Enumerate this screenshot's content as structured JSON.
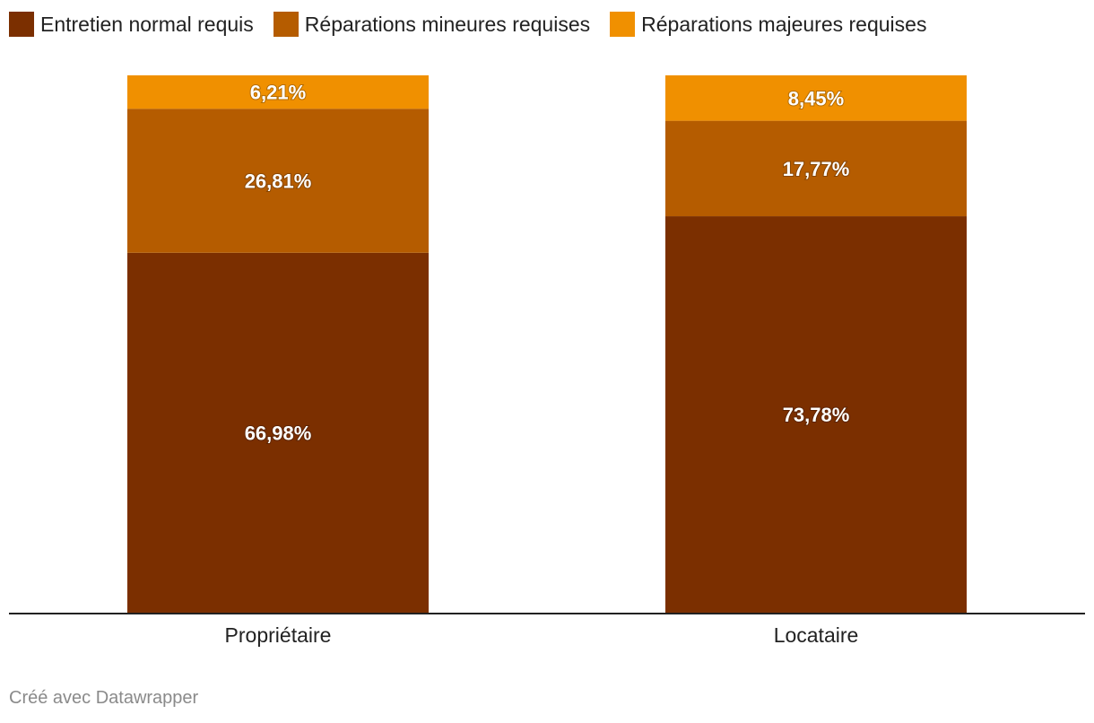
{
  "chart_data": {
    "type": "bar",
    "stacked": true,
    "normalized": true,
    "categories": [
      "Propriétaire",
      "Locataire"
    ],
    "series": [
      {
        "name": "Entretien normal requis",
        "values": [
          66.98,
          73.78
        ],
        "labels": [
          "66,98%",
          "73,78%"
        ],
        "color": "#7b2f00"
      },
      {
        "name": "Réparations mineures requises",
        "values": [
          26.81,
          17.77
        ],
        "labels": [
          "26,81%",
          "17,77%"
        ],
        "color": "#b55c00"
      },
      {
        "name": "Réparations majeures requises",
        "values": [
          6.21,
          8.45
        ],
        "labels": [
          "6,21%",
          "8,45%"
        ],
        "color": "#f09000"
      }
    ],
    "ylim": [
      0,
      100
    ],
    "legend_position": "top-left",
    "grid": false
  },
  "footer": {
    "credit": "Créé avec Datawrapper"
  }
}
